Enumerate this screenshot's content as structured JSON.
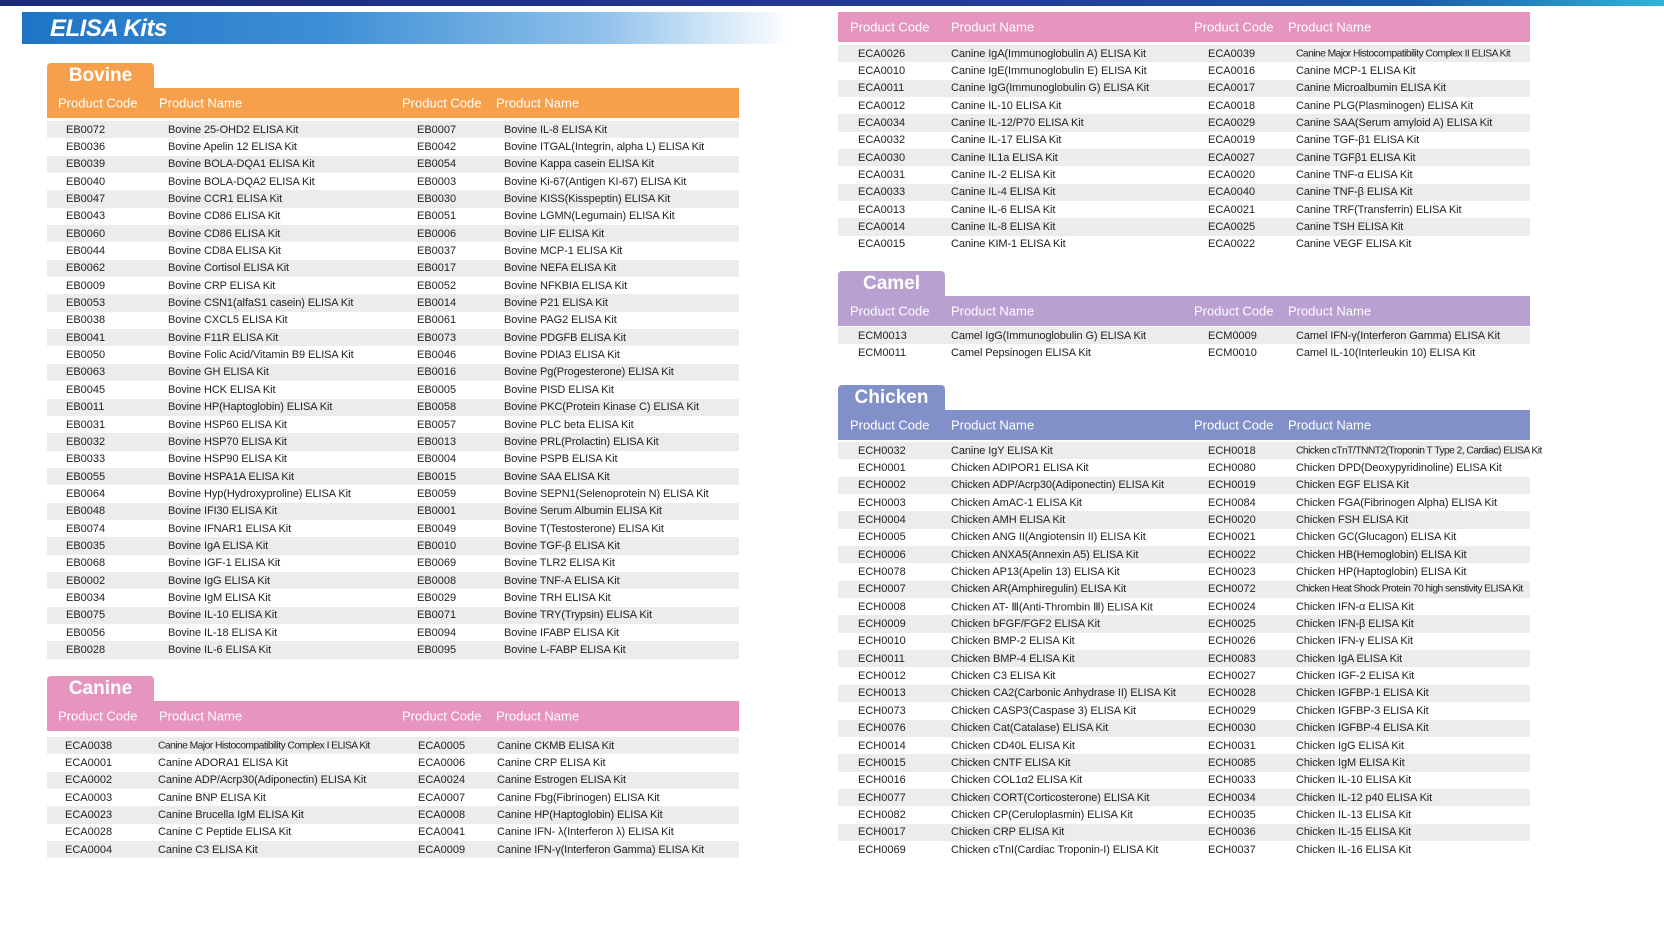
{
  "title": "ELISA Kits",
  "colors": {
    "bovine": "#f7a04b",
    "canine": "#e695bf",
    "camel": "#b8a0d0",
    "chicken": "#8190c8",
    "title_banner": "#1f74c4"
  },
  "headers": {
    "code": "Product Code",
    "name": "Product Name"
  },
  "bovine": {
    "tab": "Bovine",
    "rows": [
      [
        "EB0072",
        "Bovine 25-OHD2 ELISA Kit",
        "EB0007",
        "Bovine IL-8 ELISA Kit"
      ],
      [
        "EB0036",
        "Bovine Apelin 12 ELISA Kit",
        "EB0042",
        "Bovine ITGAL(Integrin, alpha L) ELISA Kit"
      ],
      [
        "EB0039",
        "Bovine BOLA-DQA1 ELISA Kit",
        "EB0054",
        "Bovine Kappa casein ELISA Kit"
      ],
      [
        "EB0040",
        "Bovine BOLA-DQA2 ELISA Kit",
        "EB0003",
        "Bovine Ki-67(Antigen KI-67) ELISA Kit"
      ],
      [
        "EB0047",
        "Bovine CCR1 ELISA Kit",
        "EB0030",
        "Bovine KISS(Kisspeptin) ELISA Kit"
      ],
      [
        "EB0043",
        "Bovine CD86 ELISA Kit",
        "EB0051",
        "Bovine LGMN(Legumain) ELISA Kit"
      ],
      [
        "EB0060",
        "Bovine CD86 ELISA Kit",
        "EB0006",
        "Bovine LIF ELISA Kit"
      ],
      [
        "EB0044",
        "Bovine CD8A ELISA Kit",
        "EB0037",
        "Bovine MCP-1 ELISA Kit"
      ],
      [
        "EB0062",
        "Bovine Cortisol ELISA Kit",
        "EB0017",
        "Bovine NEFA ELISA Kit"
      ],
      [
        "EB0009",
        "Bovine CRP ELISA Kit",
        "EB0052",
        "Bovine NFKBIA ELISA Kit"
      ],
      [
        "EB0053",
        "Bovine CSN1(alfaS1 casein) ELISA Kit",
        "EB0014",
        "Bovine P21 ELISA Kit"
      ],
      [
        "EB0038",
        "Bovine CXCL5 ELISA Kit",
        "EB0061",
        "Bovine PAG2 ELISA Kit"
      ],
      [
        "EB0041",
        "Bovine F11R ELISA Kit",
        "EB0073",
        "Bovine PDGFB ELISA Kit"
      ],
      [
        "EB0050",
        "Bovine Folic Acid/Vitamin B9 ELISA Kit",
        "EB0046",
        "Bovine PDIA3 ELISA Kit"
      ],
      [
        "EB0063",
        "Bovine GH ELISA Kit",
        "EB0016",
        "Bovine Pg(Progesterone) ELISA Kit"
      ],
      [
        "EB0045",
        "Bovine HCK ELISA Kit",
        "EB0005",
        "Bovine PISD ELISA Kit"
      ],
      [
        "EB0011",
        "Bovine HP(Haptoglobin) ELISA Kit",
        "EB0058",
        "Bovine PKC(Protein Kinase C) ELISA Kit"
      ],
      [
        "EB0031",
        "Bovine HSP60 ELISA Kit",
        "EB0057",
        "Bovine PLC beta ELISA Kit"
      ],
      [
        "EB0032",
        "Bovine HSP70 ELISA Kit",
        "EB0013",
        "Bovine PRL(Prolactin) ELISA Kit"
      ],
      [
        "EB0033",
        "Bovine HSP90 ELISA Kit",
        "EB0004",
        "Bovine PSPB ELISA Kit"
      ],
      [
        "EB0055",
        "Bovine HSPA1A ELISA Kit",
        "EB0015",
        "Bovine SAA ELISA Kit"
      ],
      [
        "EB0064",
        "Bovine Hyp(Hydroxyproline) ELISA Kit",
        "EB0059",
        "Bovine SEPN1(Selenoprotein N) ELISA Kit"
      ],
      [
        "EB0048",
        "Bovine IFI30 ELISA Kit",
        "EB0001",
        "Bovine Serum Albumin ELISA Kit"
      ],
      [
        "EB0074",
        "Bovine IFNAR1 ELISA Kit",
        "EB0049",
        "Bovine T(Testosterone) ELISA Kit"
      ],
      [
        "EB0035",
        "Bovine IgA ELISA Kit",
        "EB0010",
        "Bovine TGF-β ELISA Kit"
      ],
      [
        "EB0068",
        "Bovine IGF-1 ELISA Kit",
        "EB0069",
        "Bovine TLR2 ELISA Kit"
      ],
      [
        "EB0002",
        "Bovine IgG ELISA Kit",
        "EB0008",
        "Bovine TNF-A ELISA Kit"
      ],
      [
        "EB0034",
        "Bovine IgM ELISA Kit",
        "EB0029",
        "Bovine TRH ELISA Kit"
      ],
      [
        "EB0075",
        "Bovine IL-10 ELISA Kit",
        "EB0071",
        "Bovine TRY(Trypsin) ELISA Kit"
      ],
      [
        "EB0056",
        "Bovine IL-18 ELISA Kit",
        "EB0094",
        "Bovine IFABP ELISA Kit"
      ],
      [
        "EB0028",
        "Bovine IL-6 ELISA Kit",
        "EB0095",
        "Bovine L-FABP ELISA Kit"
      ]
    ]
  },
  "canine": {
    "tab": "Canine",
    "rows": [
      [
        "ECA0038",
        "Canine Major Histocompatibility Complex I ELISA Kit",
        "ECA0005",
        "Canine CKMB ELISA Kit"
      ],
      [
        "ECA0001",
        "Canine ADORA1 ELISA Kit",
        "ECA0006",
        "Canine CRP ELISA Kit"
      ],
      [
        "ECA0002",
        "Canine ADP/Acrp30(Adiponectin) ELISA Kit",
        "ECA0024",
        "Canine Estrogen ELISA Kit"
      ],
      [
        "ECA0003",
        "Canine BNP ELISA Kit",
        "ECA0007",
        "Canine Fbg(Fibrinogen) ELISA Kit"
      ],
      [
        "ECA0023",
        "Canine Brucella IgM ELISA Kit",
        "ECA0008",
        "Canine HP(Haptoglobin) ELISA Kit"
      ],
      [
        "ECA0028",
        "Canine C Peptide ELISA Kit",
        "ECA0041",
        "Canine IFN- λ(Interferon λ) ELISA Kit"
      ],
      [
        "ECA0004",
        "Canine C3 ELISA Kit",
        "ECA0009",
        "Canine IFN-γ(Interferon Gamma) ELISA Kit"
      ]
    ]
  },
  "canine_cont": {
    "rows": [
      [
        "ECA0026",
        "Canine IgA(Immunoglobulin A) ELISA Kit",
        "ECA0039",
        "Canine Major Histocompatibility Complex II ELISA Kit"
      ],
      [
        "ECA0010",
        "Canine IgE(Immunoglobulin E) ELISA Kit",
        "ECA0016",
        "Canine MCP-1 ELISA Kit"
      ],
      [
        "ECA0011",
        "Canine IgG(Immunoglobulin G) ELISA Kit",
        "ECA0017",
        "Canine Microalbumin ELISA Kit"
      ],
      [
        "ECA0012",
        "Canine IL-10 ELISA Kit",
        "ECA0018",
        "Canine PLG(Plasminogen) ELISA Kit"
      ],
      [
        "ECA0034",
        "Canine IL-12/P70 ELISA Kit",
        "ECA0029",
        "Canine SAA(Serum amyloid A) ELISA Kit"
      ],
      [
        "ECA0032",
        "Canine IL-17 ELISA Kit",
        "ECA0019",
        "Canine TGF-β1 ELISA Kit"
      ],
      [
        "ECA0030",
        "Canine IL1a ELISA Kit",
        "ECA0027",
        "Canine TGFβ1 ELISA Kit"
      ],
      [
        "ECA0031",
        "Canine IL-2 ELISA Kit",
        "ECA0020",
        "Canine TNF-α ELISA Kit"
      ],
      [
        "ECA0033",
        "Canine IL-4 ELISA Kit",
        "ECA0040",
        "Canine TNF-β ELISA Kit"
      ],
      [
        "ECA0013",
        "Canine IL-6 ELISA Kit",
        "ECA0021",
        "Canine TRF(Transferrin) ELISA Kit"
      ],
      [
        "ECA0014",
        "Canine IL-8 ELISA Kit",
        "ECA0025",
        "Canine TSH ELISA Kit"
      ],
      [
        "ECA0015",
        "Canine KIM-1 ELISA Kit",
        "ECA0022",
        "Canine VEGF ELISA Kit"
      ]
    ]
  },
  "camel": {
    "tab": "Camel",
    "rows": [
      [
        "ECM0013",
        "Camel IgG(Immunoglobulin G) ELISA Kit",
        "ECM0009",
        "Camel IFN-γ(Interferon Gamma) ELISA Kit"
      ],
      [
        "ECM0011",
        "Camel Pepsinogen ELISA Kit",
        "ECM0010",
        "Camel IL-10(Interleukin 10) ELISA Kit"
      ]
    ]
  },
  "chicken": {
    "tab": "Chicken",
    "rows": [
      [
        "ECH0032",
        "Canine IgY ELISA Kit",
        "ECH0018",
        "Chicken cTnT/TNNT2(Troponin T Type 2, Cardiac) ELISA Kit"
      ],
      [
        "ECH0001",
        "Chicken ADIPOR1 ELISA Kit",
        "ECH0080",
        "Chicken DPD(Deoxypyridinoline) ELISA Kit"
      ],
      [
        "ECH0002",
        "Chicken ADP/Acrp30(Adiponectin) ELISA Kit",
        "ECH0019",
        "Chicken EGF ELISA Kit"
      ],
      [
        "ECH0003",
        "Chicken AmAC-1 ELISA Kit",
        "ECH0084",
        "Chicken FGA(Fibrinogen Alpha) ELISA Kit"
      ],
      [
        "ECH0004",
        "Chicken AMH ELISA Kit",
        "ECH0020",
        "Chicken FSH ELISA Kit"
      ],
      [
        "ECH0005",
        "Chicken ANG II(Angiotensin II) ELISA Kit",
        "ECH0021",
        "Chicken GC(Glucagon) ELISA Kit"
      ],
      [
        "ECH0006",
        "Chicken ANXA5(Annexin A5) ELISA Kit",
        "ECH0022",
        "Chicken HB(Hemoglobin) ELISA Kit"
      ],
      [
        "ECH0078",
        "Chicken AP13(Apelin 13) ELISA Kit",
        "ECH0023",
        "Chicken HP(Haptoglobin) ELISA Kit"
      ],
      [
        "ECH0007",
        "Chicken AR(Amphiregulin) ELISA Kit",
        "ECH0072",
        "Chicken Heat Shock Protein 70 high senstivity ELISA Kit"
      ],
      [
        "ECH0008",
        "Chicken AT- Ⅲ(Anti-Thrombin Ⅲ) ELISA Kit",
        "ECH0024",
        "Chicken IFN-α ELISA Kit"
      ],
      [
        "ECH0009",
        "Chicken bFGF/FGF2 ELISA Kit",
        "ECH0025",
        "Chicken IFN-β ELISA Kit"
      ],
      [
        "ECH0010",
        "Chicken BMP-2 ELISA Kit",
        "ECH0026",
        "Chicken IFN-γ ELISA Kit"
      ],
      [
        "ECH0011",
        "Chicken BMP-4 ELISA Kit",
        "ECH0083",
        "Chicken IgA ELISA Kit"
      ],
      [
        "ECH0012",
        "Chicken C3 ELISA Kit",
        "ECH0027",
        "Chicken IGF-2 ELISA Kit"
      ],
      [
        "ECH0013",
        "Chicken CA2(Carbonic Anhydrase II) ELISA Kit",
        "ECH0028",
        "Chicken IGFBP-1 ELISA Kit"
      ],
      [
        "ECH0073",
        "Chicken CASP3(Caspase 3) ELISA Kit",
        "ECH0029",
        "Chicken IGFBP-3 ELISA Kit"
      ],
      [
        "ECH0076",
        "Chicken Cat(Catalase) ELISA Kit",
        "ECH0030",
        "Chicken IGFBP-4 ELISA Kit"
      ],
      [
        "ECH0014",
        "Chicken CD40L ELISA Kit",
        "ECH0031",
        "Chicken IgG ELISA Kit"
      ],
      [
        "ECH0015",
        "Chicken CNTF ELISA Kit",
        "ECH0085",
        "Chicken IgM ELISA Kit"
      ],
      [
        "ECH0016",
        "Chicken COL1α2 ELISA Kit",
        "ECH0033",
        "Chicken IL-10 ELISA Kit"
      ],
      [
        "ECH0077",
        "Chicken CORT(Corticosterone) ELISA Kit",
        "ECH0034",
        "Chicken IL-12 p40 ELISA Kit"
      ],
      [
        "ECH0082",
        "Chicken CP(Ceruloplasmin) ELISA Kit",
        "ECH0035",
        "Chicken IL-13 ELISA Kit"
      ],
      [
        "ECH0017",
        "Chicken CRP ELISA Kit",
        "ECH0036",
        "Chicken IL-15 ELISA Kit"
      ],
      [
        "ECH0069",
        "Chicken cTnI(Cardiac Troponin-I) ELISA Kit",
        "ECH0037",
        "Chicken IL-16 ELISA Kit"
      ]
    ]
  }
}
